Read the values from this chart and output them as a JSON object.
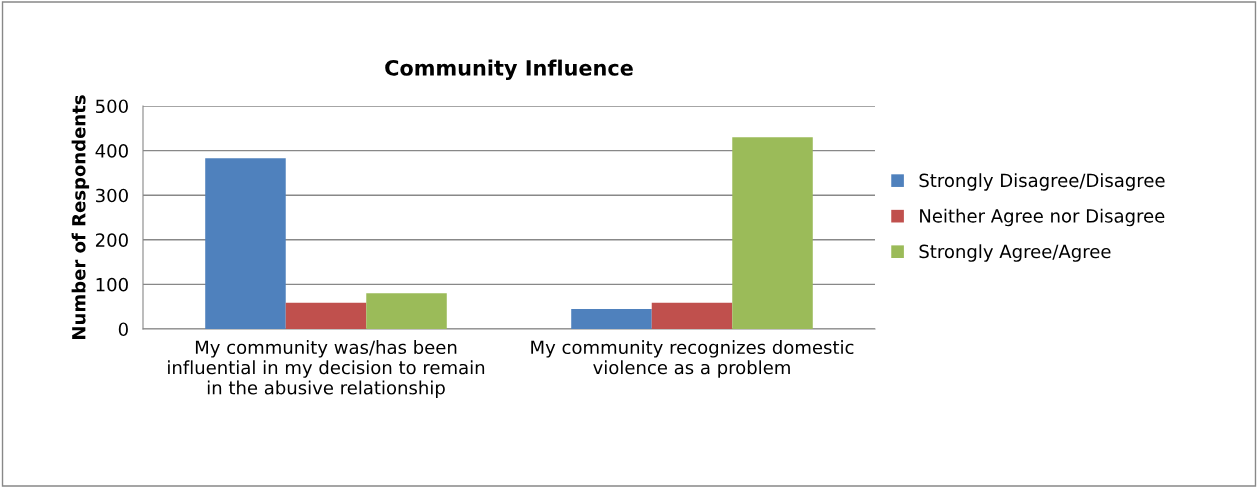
{
  "chart_data": {
    "type": "bar",
    "title": "Community Influence",
    "ylabel": "Number of Respondents",
    "categories": [
      "My community was/has been influential in my decision to remain in the abusive relationship",
      "My community recognizes domestic violence as a problem"
    ],
    "series": [
      {
        "name": "Strongly Disagree/Disagree",
        "color": "#4f81bd",
        "values": [
          383,
          45
        ]
      },
      {
        "name": "Neither Agree nor Disagree",
        "color": "#c0504d",
        "values": [
          59,
          59
        ]
      },
      {
        "name": "Strongly Agree/Agree",
        "color": "#9bbb59",
        "values": [
          80,
          430
        ]
      }
    ],
    "ylim": [
      0,
      500
    ],
    "yticks": [
      0,
      100,
      200,
      300,
      400,
      500
    ],
    "grid": "y",
    "legend": "right"
  }
}
